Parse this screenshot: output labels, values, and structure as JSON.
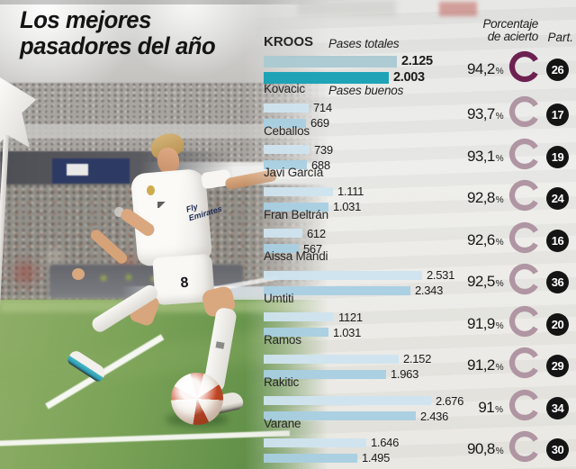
{
  "title": {
    "line1": "Los mejores",
    "line2": "pasadores del año"
  },
  "headers": {
    "accuracy_line1": "Porcentaje",
    "accuracy_line2": "de acierto",
    "matches": "Part."
  },
  "legend": {
    "total": "Pases totales",
    "good": "Pases buenos"
  },
  "percent_symbol": "%",
  "photo": {
    "player_number": "8",
    "sponsor_line1": "Fly",
    "sponsor_line2": "Emirates"
  },
  "colors": {
    "bar_total_highlight": "#a9c9d2",
    "bar_good_highlight": "#149fb4",
    "bar_total": "#cfe4ef",
    "bar_good": "#a8cfe2",
    "ring_highlight": "#6d2150",
    "ring_normal": "#b095a3",
    "badge_bg": "#141414"
  },
  "chart_data": {
    "type": "bar",
    "orientation": "horizontal",
    "series_labels": [
      "Pases totales",
      "Pases buenos"
    ],
    "max_value": 2676,
    "players": [
      {
        "name": "KROOS",
        "highlight": true,
        "total": 2125,
        "total_display": "2.125",
        "good": 2003,
        "good_display": "2.003",
        "accuracy": 94.2,
        "accuracy_display": "94,2",
        "matches": "26"
      },
      {
        "name": "Kovacic",
        "highlight": false,
        "total": 714,
        "total_display": "714",
        "good": 669,
        "good_display": "669",
        "accuracy": 93.7,
        "accuracy_display": "93,7",
        "matches": "17"
      },
      {
        "name": "Ceballos",
        "highlight": false,
        "total": 739,
        "total_display": "739",
        "good": 688,
        "good_display": "688",
        "accuracy": 93.1,
        "accuracy_display": "93,1",
        "matches": "19"
      },
      {
        "name": "Javi García",
        "highlight": false,
        "total": 1111,
        "total_display": "1.111",
        "good": 1031,
        "good_display": "1.031",
        "accuracy": 92.8,
        "accuracy_display": "92,8",
        "matches": "24"
      },
      {
        "name": "Fran Beltrán",
        "highlight": false,
        "total": 612,
        "total_display": "612",
        "good": 567,
        "good_display": "567",
        "accuracy": 92.6,
        "accuracy_display": "92,6",
        "matches": "16"
      },
      {
        "name": "Aissa Mandi",
        "highlight": false,
        "total": 2531,
        "total_display": "2.531",
        "good": 2343,
        "good_display": "2.343",
        "accuracy": 92.5,
        "accuracy_display": "92,5",
        "matches": "36"
      },
      {
        "name": "Umtiti",
        "highlight": false,
        "total": 1121,
        "total_display": "1121",
        "good": 1031,
        "good_display": "1.031",
        "accuracy": 91.9,
        "accuracy_display": "91,9",
        "matches": "20"
      },
      {
        "name": "Ramos",
        "highlight": false,
        "total": 2152,
        "total_display": "2.152",
        "good": 1963,
        "good_display": "1.963",
        "accuracy": 91.2,
        "accuracy_display": "91,2",
        "matches": "29"
      },
      {
        "name": "Rakitic",
        "highlight": false,
        "total": 2676,
        "total_display": "2.676",
        "good": 2436,
        "good_display": "2.436",
        "accuracy": 91.0,
        "accuracy_display": "91",
        "matches": "34"
      },
      {
        "name": "Varane",
        "highlight": false,
        "total": 1646,
        "total_display": "1.646",
        "good": 1495,
        "good_display": "1.495",
        "accuracy": 90.8,
        "accuracy_display": "90,8",
        "matches": "30"
      }
    ]
  }
}
